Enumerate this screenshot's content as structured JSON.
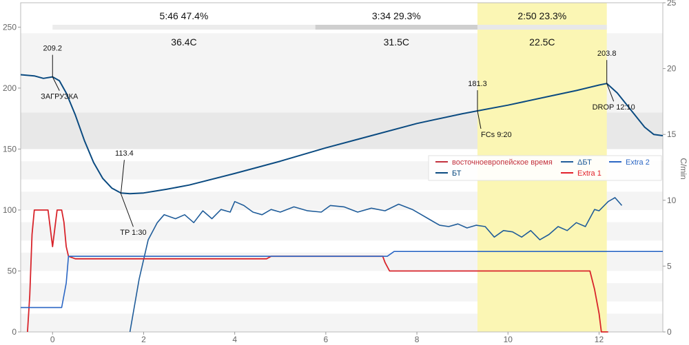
{
  "chart_data": {
    "type": "line",
    "x_range": [
      -0.7,
      13.4
    ],
    "x_ticks": [
      0,
      2,
      4,
      6,
      8,
      10,
      12
    ],
    "y_left_range": [
      0,
      270
    ],
    "y_left_ticks": [
      0,
      50,
      100,
      150,
      200,
      250
    ],
    "y_right_range": [
      0,
      25
    ],
    "y_right_ticks": [
      0,
      5,
      10,
      15,
      20,
      25
    ],
    "y_right_label": "C/min",
    "colors": {
      "bt": "#0a4a80",
      "delta_bt": "#1f5c99",
      "et": "#d8232a",
      "extra1": "#e2202a",
      "extra2": "#2a66c4",
      "highlight": "#fbf6b4",
      "band_light": "#f4f4f4",
      "band_dark": "#e8e8e8"
    },
    "phases": [
      {
        "time": "5:46",
        "percent": "47.4%",
        "temp": "36.4C",
        "x_start": 0,
        "x_end": 5.77
      },
      {
        "time": "3:34",
        "percent": "29.3%",
        "temp": "31.5C",
        "x_start": 5.77,
        "x_end": 9.33
      },
      {
        "time": "2:50",
        "percent": "23.3%",
        "temp": "22.5C",
        "x_start": 9.33,
        "x_end": 12.17
      }
    ],
    "highlight_x": [
      9.33,
      12.17
    ],
    "annotations": [
      {
        "value": "209.2",
        "label": "ЗАГРУЗКА",
        "x": 0,
        "y": 209.2
      },
      {
        "value": "113.4",
        "label": "TP 1:30",
        "x": 1.5,
        "y": 113.4
      },
      {
        "value": "181.3",
        "label": "FCs 9:20",
        "x": 9.33,
        "y": 181.3
      },
      {
        "value": "203.8",
        "label": "DROP 12:10",
        "x": 12.17,
        "y": 203.8
      }
    ],
    "legend": {
      "placement": "right-middle",
      "items": [
        {
          "label": "восточноевропейское время",
          "color": "#c2303d"
        },
        {
          "label": "БТ",
          "color": "#0a4a80"
        },
        {
          "label": "ΔБТ",
          "color": "#1f5c99"
        },
        {
          "label": "Extra 1",
          "color": "#e2202a"
        },
        {
          "label": "Extra 2",
          "color": "#2a66c4"
        }
      ]
    },
    "series": [
      {
        "key": "bt",
        "axis": "left",
        "points": [
          [
            -0.7,
            211
          ],
          [
            -0.4,
            210
          ],
          [
            -0.2,
            208
          ],
          [
            0,
            209.2
          ],
          [
            0.15,
            206
          ],
          [
            0.3,
            196
          ],
          [
            0.5,
            178
          ],
          [
            0.7,
            157
          ],
          [
            0.9,
            139
          ],
          [
            1.1,
            126
          ],
          [
            1.3,
            118
          ],
          [
            1.5,
            114
          ],
          [
            1.7,
            113.4
          ],
          [
            2,
            114
          ],
          [
            2.5,
            117
          ],
          [
            3,
            120.5
          ],
          [
            4,
            130
          ],
          [
            5,
            140
          ],
          [
            6,
            151
          ],
          [
            7,
            161
          ],
          [
            8,
            171
          ],
          [
            9,
            179
          ],
          [
            9.33,
            181.3
          ],
          [
            10,
            186
          ],
          [
            11,
            194
          ],
          [
            11.5,
            198
          ],
          [
            12,
            202.5
          ],
          [
            12.17,
            203.8
          ],
          [
            12.4,
            196
          ],
          [
            12.7,
            182
          ],
          [
            13,
            168
          ],
          [
            13.2,
            162
          ],
          [
            13.4,
            161
          ]
        ]
      },
      {
        "key": "delta_bt",
        "axis": "right",
        "points": [
          [
            1.7,
            0
          ],
          [
            1.9,
            4
          ],
          [
            2.1,
            7
          ],
          [
            2.3,
            8.3
          ],
          [
            2.45,
            8.9
          ],
          [
            2.7,
            8.6
          ],
          [
            2.9,
            8.9
          ],
          [
            3.1,
            8.3
          ],
          [
            3.3,
            9.2
          ],
          [
            3.5,
            8.6
          ],
          [
            3.7,
            9.3
          ],
          [
            3.9,
            9.1
          ],
          [
            4,
            9.9
          ],
          [
            4.2,
            9.6
          ],
          [
            4.4,
            9.1
          ],
          [
            4.6,
            8.9
          ],
          [
            4.8,
            9.3
          ],
          [
            5,
            9.1
          ],
          [
            5.3,
            9.5
          ],
          [
            5.6,
            9.2
          ],
          [
            5.9,
            9.1
          ],
          [
            6.1,
            9.6
          ],
          [
            6.4,
            9.5
          ],
          [
            6.7,
            9.1
          ],
          [
            7,
            9.4
          ],
          [
            7.3,
            9.2
          ],
          [
            7.6,
            9.7
          ],
          [
            7.9,
            9.3
          ],
          [
            8.1,
            8.9
          ],
          [
            8.3,
            8.5
          ],
          [
            8.5,
            8.1
          ],
          [
            8.7,
            8
          ],
          [
            8.9,
            8.2
          ],
          [
            9.1,
            7.9
          ],
          [
            9.3,
            8.1
          ],
          [
            9.5,
            8.0
          ],
          [
            9.7,
            7.2
          ],
          [
            9.9,
            7.7
          ],
          [
            10.1,
            7.6
          ],
          [
            10.3,
            7.2
          ],
          [
            10.5,
            7.7
          ],
          [
            10.7,
            7.0
          ],
          [
            10.9,
            7.4
          ],
          [
            11.1,
            8
          ],
          [
            11.3,
            7.7
          ],
          [
            11.5,
            8.3
          ],
          [
            11.7,
            8
          ],
          [
            11.9,
            9.3
          ],
          [
            12.0,
            9.2
          ],
          [
            12.2,
            9.9
          ],
          [
            12.35,
            10.2
          ],
          [
            12.5,
            9.6
          ]
        ]
      },
      {
        "key": "et",
        "axis": "left",
        "points": [
          [
            -0.55,
            0
          ],
          [
            -0.5,
            30
          ],
          [
            -0.45,
            80
          ],
          [
            -0.4,
            100
          ],
          [
            -0.1,
            100
          ],
          [
            -0.05,
            85
          ],
          [
            0,
            70
          ],
          [
            0.05,
            85
          ],
          [
            0.1,
            100
          ],
          [
            0.2,
            100
          ],
          [
            0.25,
            90
          ],
          [
            0.3,
            70
          ],
          [
            0.35,
            62
          ],
          [
            0.5,
            60
          ],
          [
            4.7,
            60
          ],
          [
            4.8,
            62
          ],
          [
            7.25,
            62
          ],
          [
            7.3,
            57
          ],
          [
            7.4,
            50
          ],
          [
            11.8,
            50
          ],
          [
            11.9,
            35
          ],
          [
            12,
            15
          ],
          [
            12.05,
            0
          ],
          [
            12.2,
            0
          ]
        ]
      },
      {
        "key": "extra2",
        "axis": "left",
        "points": [
          [
            -0.7,
            20
          ],
          [
            0.2,
            20
          ],
          [
            0.3,
            40
          ],
          [
            0.35,
            62
          ],
          [
            7.35,
            62
          ],
          [
            7.5,
            66
          ],
          [
            13.4,
            66
          ]
        ]
      }
    ]
  }
}
